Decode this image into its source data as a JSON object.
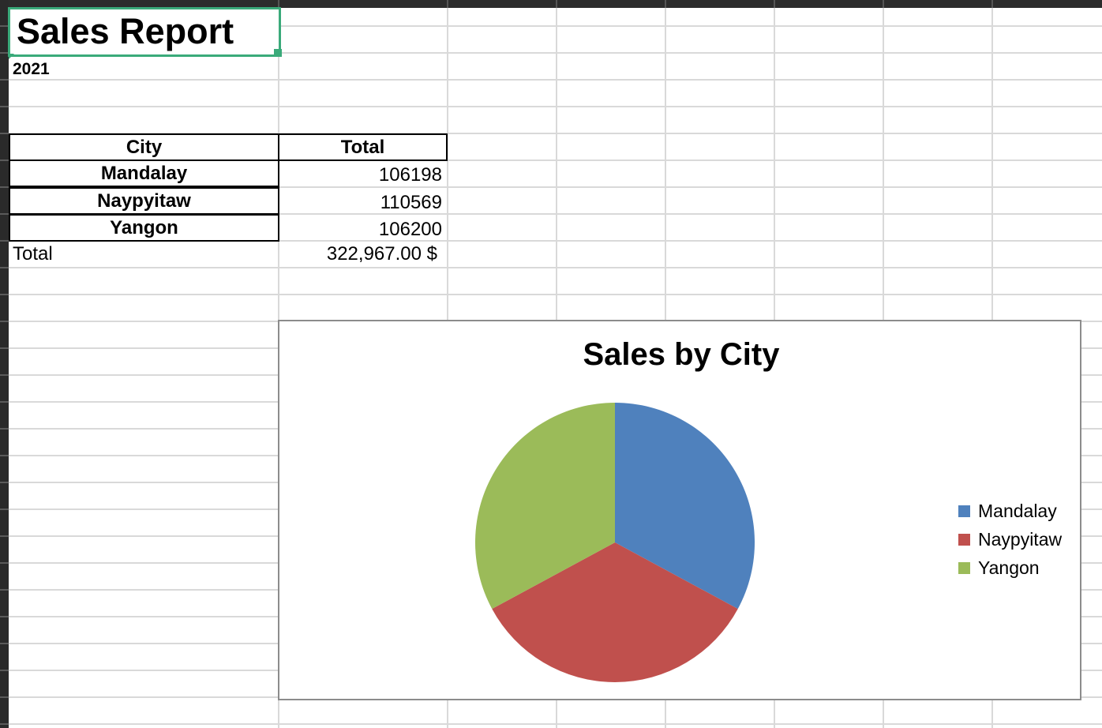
{
  "sheet": {
    "title": "Sales Report",
    "year": "2021"
  },
  "table": {
    "headers": {
      "city": "City",
      "total": "Total"
    },
    "rows": [
      {
        "city": "Mandalay",
        "total": "106198"
      },
      {
        "city": "Naypyitaw",
        "total": "110569"
      },
      {
        "city": "Yangon",
        "total": "106200"
      }
    ],
    "total_label": "Total",
    "total_value": "322,967.00 $"
  },
  "chart_data": {
    "type": "pie",
    "title": "Sales by City",
    "categories": [
      "Mandalay",
      "Naypyitaw",
      "Yangon"
    ],
    "values": [
      106198,
      110569,
      106200
    ],
    "colors": [
      "#4f81bd",
      "#c0504d",
      "#9bbb59"
    ],
    "legend": "right"
  }
}
